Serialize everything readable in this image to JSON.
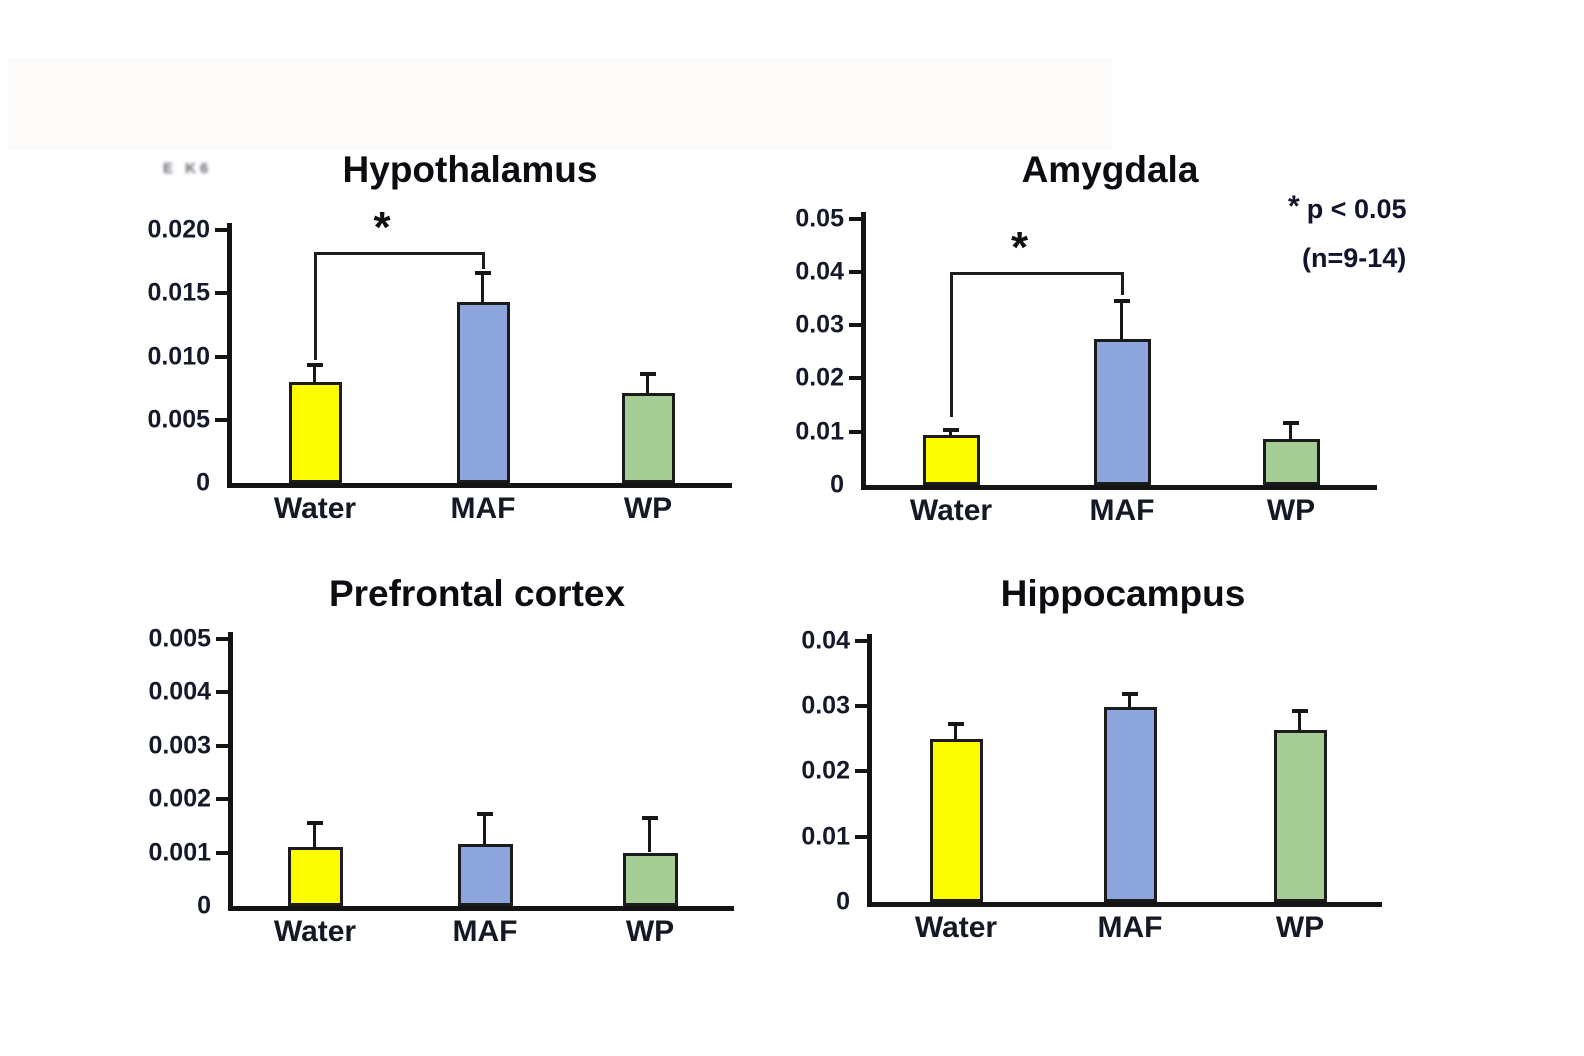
{
  "figure": {
    "background": "#ffffff",
    "description": "Four bar charts comparing Water, MAF and WP groups across brain regions"
  },
  "artifact": {
    "text": "E K6"
  },
  "legend": {
    "star": "*",
    "p_text": "p < 0.05",
    "n_text": "(n=9-14)",
    "position": "top-right"
  },
  "colors": {
    "water_bar": "#FCFC00",
    "maf_bar": "#8CA6DB",
    "wp_bar": "#A6CD95",
    "bar_border": "#1b1b1b",
    "axis": "#141414",
    "text": "#10152b"
  },
  "chart_data": [
    {
      "type": "bar",
      "title": "Hypothalamus",
      "categories": [
        "Water",
        "MAF",
        "WP"
      ],
      "values": [
        0.008,
        0.0143,
        0.0071
      ],
      "errors": [
        0.0013,
        0.0023,
        0.0015
      ],
      "bar_colors": [
        "#FCFC00",
        "#8CA6DB",
        "#A6CD95"
      ],
      "ylim": [
        0,
        0.02
      ],
      "grid": false,
      "yticks": [
        {
          "v": 0,
          "label": "0"
        },
        {
          "v": 0.005,
          "label": "0.005"
        },
        {
          "v": 0.01,
          "label": "0.010"
        },
        {
          "v": 0.015,
          "label": "0.015"
        },
        {
          "v": 0.02,
          "label": "0.020"
        }
      ],
      "significance": {
        "between": [
          "Water",
          "MAF"
        ],
        "label": "*",
        "line_y": 0.0183,
        "left_drop_y": 0.0097,
        "right_drop_y": 0.0169
      }
    },
    {
      "type": "bar",
      "title": "Amygdala",
      "categories": [
        "Water",
        "MAF",
        "WP"
      ],
      "values": [
        0.0093,
        0.0273,
        0.0086
      ],
      "errors": [
        0.001,
        0.0072,
        0.003
      ],
      "bar_colors": [
        "#FCFC00",
        "#8CA6DB",
        "#A6CD95"
      ],
      "ylim": [
        0,
        0.05
      ],
      "grid": false,
      "yticks": [
        {
          "v": 0,
          "label": "0"
        },
        {
          "v": 0.01,
          "label": "0.01"
        },
        {
          "v": 0.02,
          "label": "0.02"
        },
        {
          "v": 0.03,
          "label": "0.03"
        },
        {
          "v": 0.04,
          "label": "0.04"
        },
        {
          "v": 0.05,
          "label": "0.05"
        }
      ],
      "significance": {
        "between": [
          "Water",
          "MAF"
        ],
        "label": "*",
        "line_y": 0.04,
        "left_drop_y": 0.0128,
        "right_drop_y": 0.0357
      }
    },
    {
      "type": "bar",
      "title": "Prefrontal cortex",
      "categories": [
        "Water",
        "MAF",
        "WP"
      ],
      "values": [
        0.0011,
        0.00115,
        0.001
      ],
      "errors": [
        0.00045,
        0.00057,
        0.00065
      ],
      "bar_colors": [
        "#FCFC00",
        "#8CA6DB",
        "#A6CD95"
      ],
      "ylim": [
        0,
        0.005
      ],
      "grid": false,
      "yticks": [
        {
          "v": 0,
          "label": "0"
        },
        {
          "v": 0.001,
          "label": "0.001"
        },
        {
          "v": 0.002,
          "label": "0.002"
        },
        {
          "v": 0.003,
          "label": "0.003"
        },
        {
          "v": 0.004,
          "label": "0.004"
        },
        {
          "v": 0.005,
          "label": "0.005"
        }
      ],
      "significance": null
    },
    {
      "type": "bar",
      "title": "Hippocampus",
      "categories": [
        "Water",
        "MAF",
        "WP"
      ],
      "values": [
        0.025,
        0.0298,
        0.0263
      ],
      "errors": [
        0.0023,
        0.0021,
        0.003
      ],
      "bar_colors": [
        "#FCFC00",
        "#8CA6DB",
        "#A6CD95"
      ],
      "ylim": [
        0,
        0.04
      ],
      "grid": false,
      "yticks": [
        {
          "v": 0,
          "label": "0"
        },
        {
          "v": 0.01,
          "label": "0.01"
        },
        {
          "v": 0.02,
          "label": "0.02"
        },
        {
          "v": 0.03,
          "label": "0.03"
        },
        {
          "v": 0.04,
          "label": "0.04"
        }
      ],
      "significance": null
    }
  ]
}
